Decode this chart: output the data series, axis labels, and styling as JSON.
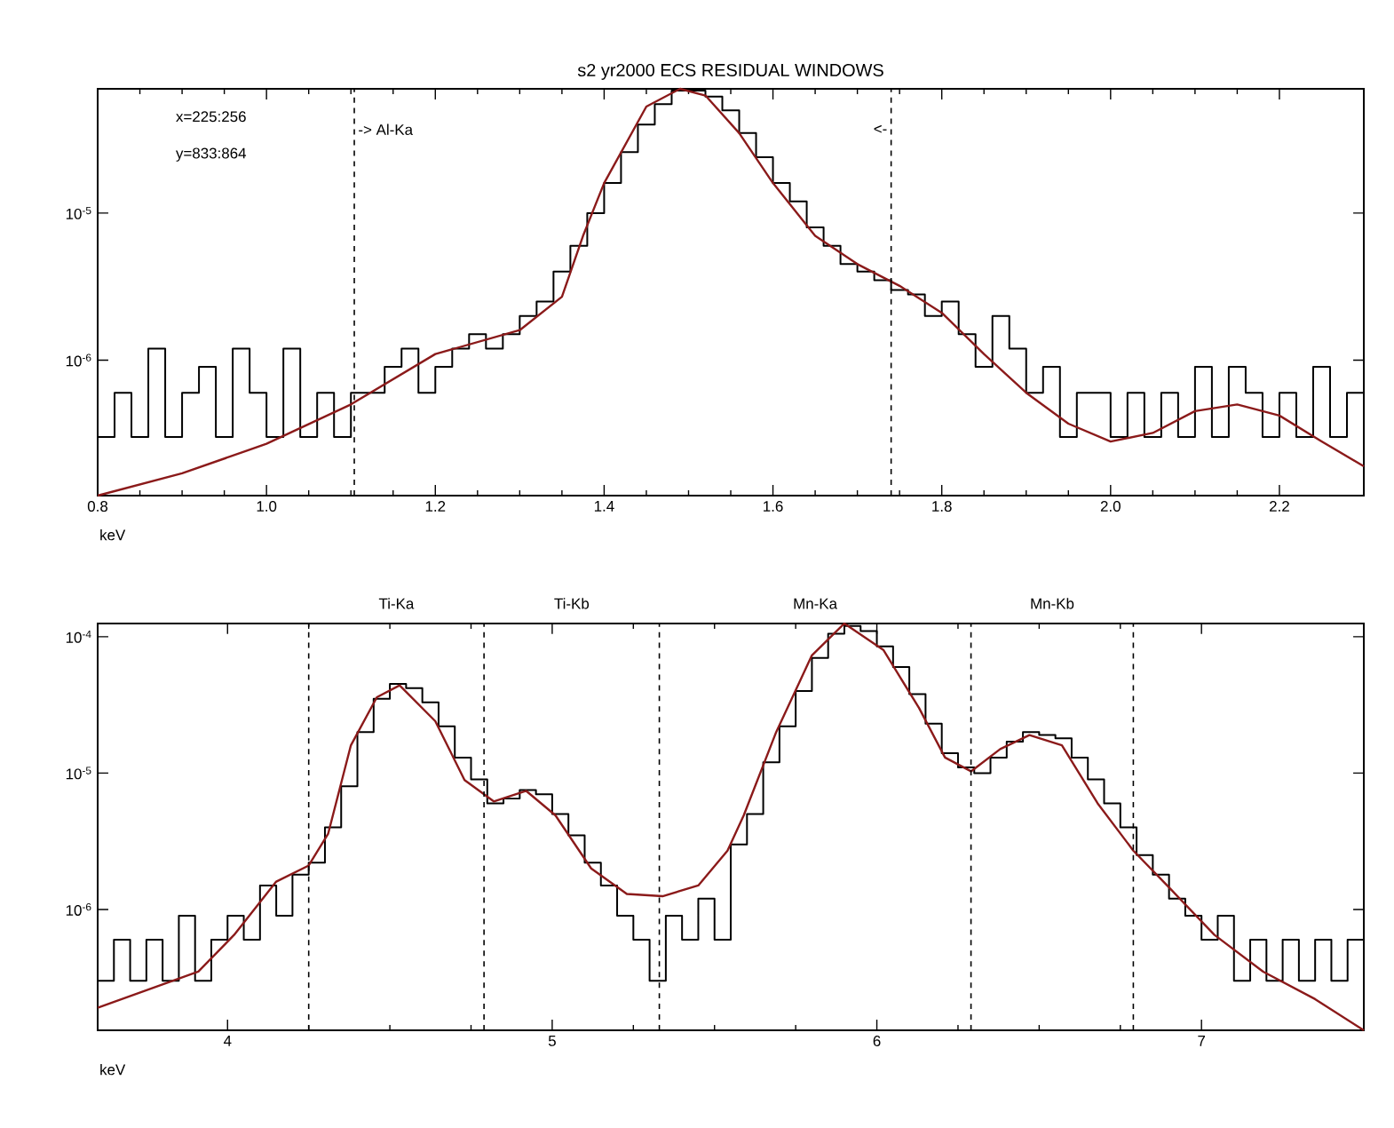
{
  "chart_data": [
    {
      "type": "step",
      "title": "s2 yr2000 ECS RESIDUAL WINDOWS",
      "xlabel": "keV",
      "log": "y",
      "xlim": [
        0.8,
        2.3
      ],
      "ylim": [
        1.2e-07,
        7e-05
      ],
      "xticks": [
        {
          "value": 0.8,
          "label": "0.8"
        },
        {
          "value": 1.0,
          "label": "1.0"
        },
        {
          "value": 1.2,
          "label": "1.2"
        },
        {
          "value": 1.4,
          "label": "1.4"
        },
        {
          "value": 1.6,
          "label": "1.6"
        },
        {
          "value": 1.8,
          "label": "1.8"
        },
        {
          "value": 2.0,
          "label": "2.0"
        },
        {
          "value": 2.2,
          "label": "2.2"
        }
      ],
      "yticks": [
        {
          "value": 1e-06,
          "label": "10$^{-6}$"
        },
        {
          "value": 1e-05,
          "label": "10$^{-5}$"
        }
      ],
      "annotations": [
        "x=225:256",
        "y=833:864"
      ],
      "ref_lines": [
        {
          "axis": "x",
          "value": 1.104,
          "label": "-> Al-Ka",
          "line_style": "dashed",
          "color": "#000000"
        },
        {
          "axis": "x",
          "value": 1.74,
          "label": "<-",
          "line_style": "dashed",
          "color": "#000000"
        }
      ],
      "series": [
        {
          "color": "#000000",
          "x": [
            0.8,
            0.82,
            0.84,
            0.86,
            0.88,
            0.9,
            0.92,
            0.94,
            0.96,
            0.98,
            1.0,
            1.02,
            1.04,
            1.06,
            1.08,
            1.1,
            1.12,
            1.14,
            1.16,
            1.18,
            1.2,
            1.22,
            1.24,
            1.26,
            1.28,
            1.3,
            1.32,
            1.34,
            1.36,
            1.38,
            1.4,
            1.42,
            1.44,
            1.46,
            1.48,
            1.5,
            1.52,
            1.54,
            1.56,
            1.58,
            1.6,
            1.62,
            1.64,
            1.66,
            1.68,
            1.7,
            1.72,
            1.74,
            1.76,
            1.78,
            1.8,
            1.82,
            1.84,
            1.86,
            1.88,
            1.9,
            1.92,
            1.94,
            1.96,
            1.98,
            2.0,
            2.02,
            2.04,
            2.06,
            2.08,
            2.1,
            2.12,
            2.14,
            2.16,
            2.18,
            2.2,
            2.22,
            2.24,
            2.26,
            2.28,
            2.3
          ],
          "values": [
            3e-07,
            6e-07,
            3e-07,
            1.2e-06,
            3e-07,
            6e-07,
            9e-07,
            3e-07,
            1.2e-06,
            6e-07,
            3e-07,
            1.2e-06,
            3e-07,
            6e-07,
            3e-07,
            6e-07,
            6e-07,
            9e-07,
            1.2e-06,
            6e-07,
            9e-07,
            1.2e-06,
            1.5e-06,
            1.2e-06,
            1.5e-06,
            2e-06,
            2.5e-06,
            4e-06,
            6e-06,
            1e-05,
            1.6e-05,
            2.6e-05,
            4e-05,
            5.5e-05,
            6.8e-05,
            6.8e-05,
            6.2e-05,
            5e-05,
            3.5e-05,
            2.4e-05,
            1.6e-05,
            1.2e-05,
            8e-06,
            6e-06,
            4.5e-06,
            4e-06,
            3.5e-06,
            3e-06,
            2.8e-06,
            2e-06,
            2.5e-06,
            1.5e-06,
            9e-07,
            2e-06,
            1.2e-06,
            6e-07,
            9e-07,
            3e-07,
            6e-07,
            6e-07,
            3e-07,
            6e-07,
            3e-07,
            6e-07,
            3e-07,
            9e-07,
            3e-07,
            9e-07,
            6e-07,
            3e-07,
            6e-07,
            3e-07,
            9e-07,
            3e-07,
            6e-07,
            6e-07
          ]
        },
        {
          "type": "line",
          "color": "#8b1a1a",
          "x": [
            0.8,
            0.9,
            1.0,
            1.1,
            1.2,
            1.3,
            1.35,
            1.375,
            1.4,
            1.45,
            1.49,
            1.52,
            1.56,
            1.6,
            1.65,
            1.7,
            1.75,
            1.8,
            1.85,
            1.9,
            1.95,
            2.0,
            2.05,
            2.1,
            2.15,
            2.2,
            2.25,
            2.3
          ],
          "values": [
            1.2e-07,
            1.7e-07,
            2.7e-07,
            5e-07,
            1.1e-06,
            1.6e-06,
            2.7e-06,
            7e-06,
            1.6e-05,
            5.3e-05,
            7e-05,
            6.3e-05,
            3.5e-05,
            1.6e-05,
            7e-06,
            4.5e-06,
            3.2e-06,
            2.1e-06,
            1.1e-06,
            6e-07,
            3.7e-07,
            2.8e-07,
            3.2e-07,
            4.5e-07,
            5e-07,
            4.2e-07,
            2.8e-07,
            1.9e-07
          ]
        }
      ]
    },
    {
      "type": "step",
      "xlabel": "keV",
      "log": "y",
      "xlim": [
        3.6,
        7.5
      ],
      "ylim": [
        1.3e-07,
        0.000125
      ],
      "xticks": [
        4,
        5,
        6,
        7
      ],
      "yticks": [
        {
          "value": 1e-06,
          "label": "10$^{-6}$"
        },
        {
          "value": 1e-05,
          "label": "10$^{-5}$"
        },
        {
          "value": 0.0001,
          "label": "10$^{-4}$"
        }
      ],
      "annotations": [
        "Ti-Ka",
        "Ti-Kb",
        "Mn-Ka",
        "Mn-Kb"
      ],
      "ref_lines": [
        {
          "axis": "x",
          "value": 4.25,
          "line_style": "dashed",
          "color": "#000000"
        },
        {
          "axis": "x",
          "value": 4.79,
          "line_style": "dashed",
          "color": "#000000"
        },
        {
          "axis": "x",
          "value": 5.33,
          "line_style": "dashed",
          "color": "#000000"
        },
        {
          "axis": "x",
          "value": 6.29,
          "line_style": "dashed",
          "color": "#000000"
        },
        {
          "axis": "x",
          "value": 6.79,
          "line_style": "dashed",
          "color": "#000000"
        }
      ],
      "series": [
        {
          "color": "#000000",
          "x": [
            3.6,
            3.65,
            3.7,
            3.75,
            3.8,
            3.85,
            3.9,
            3.95,
            4.0,
            4.05,
            4.1,
            4.15,
            4.2,
            4.25,
            4.3,
            4.35,
            4.4,
            4.45,
            4.5,
            4.55,
            4.6,
            4.65,
            4.7,
            4.75,
            4.8,
            4.85,
            4.9,
            4.95,
            5.0,
            5.05,
            5.1,
            5.15,
            5.2,
            5.25,
            5.3,
            5.35,
            5.4,
            5.45,
            5.5,
            5.55,
            5.6,
            5.65,
            5.7,
            5.75,
            5.8,
            5.85,
            5.9,
            5.95,
            6.0,
            6.05,
            6.1,
            6.15,
            6.2,
            6.25,
            6.3,
            6.35,
            6.4,
            6.45,
            6.5,
            6.55,
            6.6,
            6.65,
            6.7,
            6.75,
            6.8,
            6.85,
            6.9,
            6.95,
            7.0,
            7.05,
            7.1,
            7.15,
            7.2,
            7.25,
            7.3,
            7.35,
            7.4,
            7.45,
            7.5
          ],
          "values": [
            3e-07,
            6e-07,
            3e-07,
            6e-07,
            3e-07,
            9e-07,
            3e-07,
            6e-07,
            9e-07,
            6e-07,
            1.5e-06,
            9e-07,
            1.8e-06,
            2.2e-06,
            4e-06,
            8e-06,
            2e-05,
            3.5e-05,
            4.5e-05,
            4.2e-05,
            3.3e-05,
            2.2e-05,
            1.3e-05,
            9e-06,
            6e-06,
            6.5e-06,
            7.5e-06,
            7e-06,
            5e-06,
            3.5e-06,
            2.2e-06,
            1.5e-06,
            9e-07,
            6e-07,
            3e-07,
            9e-07,
            6e-07,
            1.2e-06,
            6e-07,
            3e-06,
            5e-06,
            1.2e-05,
            2.2e-05,
            4e-05,
            7e-05,
            0.000105,
            0.00012,
            0.00011,
            8.5e-05,
            6e-05,
            3.8e-05,
            2.3e-05,
            1.4e-05,
            1.1e-05,
            1e-05,
            1.3e-05,
            1.7e-05,
            2e-05,
            1.9e-05,
            1.8e-05,
            1.3e-05,
            9e-06,
            6e-06,
            4e-06,
            2.5e-06,
            1.8e-06,
            1.2e-06,
            9e-07,
            6e-07,
            9e-07,
            3e-07,
            6e-07,
            3e-07,
            6e-07,
            3e-07,
            6e-07,
            3e-07,
            6e-07,
            3e-07
          ]
        },
        {
          "type": "line",
          "color": "#8b1a1a",
          "x": [
            3.6,
            3.91,
            4.02,
            4.15,
            4.25,
            4.31,
            4.38,
            4.46,
            4.53,
            4.64,
            4.73,
            4.82,
            4.92,
            5.01,
            5.12,
            5.23,
            5.34,
            5.45,
            5.54,
            5.59,
            5.69,
            5.8,
            5.9,
            6.02,
            6.13,
            6.21,
            6.29,
            6.38,
            6.47,
            6.57,
            6.68,
            6.79,
            6.9,
            7.04,
            7.19,
            7.35,
            7.5
          ],
          "values": [
            1.9e-07,
            3.5e-07,
            6.5e-07,
            1.6e-06,
            2.1e-06,
            3.6e-06,
            1.6e-05,
            3.6e-05,
            4.4e-05,
            2.4e-05,
            8.9e-06,
            6.2e-06,
            7.4e-06,
            4.9e-06,
            2e-06,
            1.3e-06,
            1.25e-06,
            1.5e-06,
            2.7e-06,
            4.9e-06,
            2e-05,
            7.3e-05,
            0.000125,
            8e-05,
            3e-05,
            1.3e-05,
            1.03e-05,
            1.5e-05,
            1.9e-05,
            1.6e-05,
            6e-06,
            2.7e-06,
            1.45e-06,
            6.5e-07,
            3.5e-07,
            2.2e-07,
            1.3e-07
          ]
        }
      ]
    }
  ]
}
